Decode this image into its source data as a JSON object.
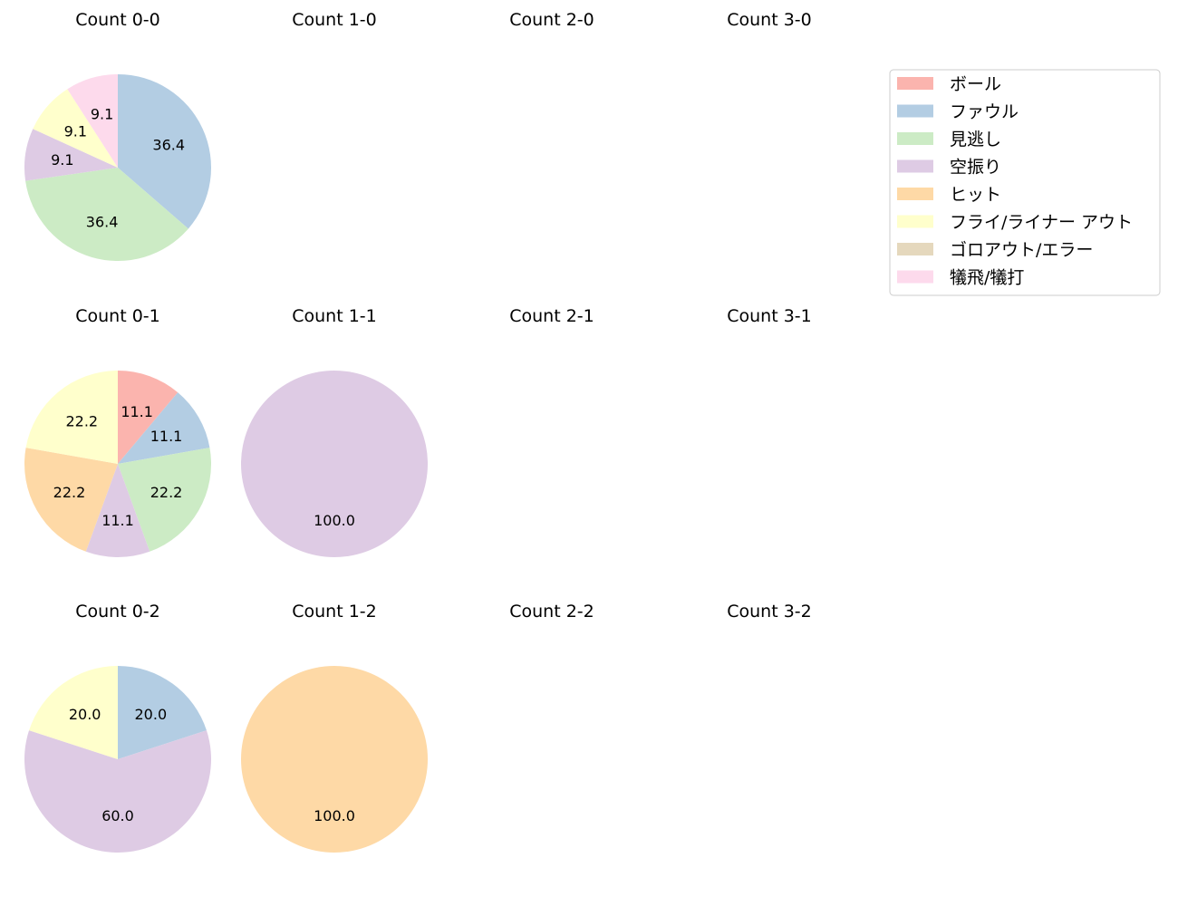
{
  "chart_data": {
    "type": "pie",
    "colors": {
      "ボール": "#fbb4ae",
      "ファウル": "#b3cde3",
      "見逃し": "#ccebc5",
      "空振り": "#decbe4",
      "ヒット": "#fed9a6",
      "フライ/ライナー アウト": "#ffffcc",
      "ゴロアウト/エラー": "#e5d8bd",
      "犠飛/犠打": "#fddaec"
    },
    "legend": {
      "placement": "top-right",
      "entries": [
        "ボール",
        "ファウル",
        "見逃し",
        "空振り",
        "ヒット",
        "フライ/ライナー アウト",
        "ゴロアウト/エラー",
        "犠飛/犠打"
      ]
    },
    "subplots": [
      {
        "title": "Count 0-0",
        "row": 0,
        "col": 0,
        "slices": [
          {
            "label": "ファウル",
            "value": 36.4
          },
          {
            "label": "見逃し",
            "value": 36.4
          },
          {
            "label": "空振り",
            "value": 9.1
          },
          {
            "label": "フライ/ライナー アウト",
            "value": 9.1
          },
          {
            "label": "犠飛/犠打",
            "value": 9.1
          }
        ]
      },
      {
        "title": "Count 1-0",
        "row": 0,
        "col": 1,
        "slices": []
      },
      {
        "title": "Count 2-0",
        "row": 0,
        "col": 2,
        "slices": []
      },
      {
        "title": "Count 3-0",
        "row": 0,
        "col": 3,
        "slices": []
      },
      {
        "title": "Count 0-1",
        "row": 1,
        "col": 0,
        "slices": [
          {
            "label": "ボール",
            "value": 11.1
          },
          {
            "label": "ファウル",
            "value": 11.1
          },
          {
            "label": "見逃し",
            "value": 22.2
          },
          {
            "label": "空振り",
            "value": 11.1
          },
          {
            "label": "ヒット",
            "value": 22.2
          },
          {
            "label": "フライ/ライナー アウト",
            "value": 22.2
          }
        ]
      },
      {
        "title": "Count 1-1",
        "row": 1,
        "col": 1,
        "slices": [
          {
            "label": "空振り",
            "value": 100.0
          }
        ]
      },
      {
        "title": "Count 2-1",
        "row": 1,
        "col": 2,
        "slices": []
      },
      {
        "title": "Count 3-1",
        "row": 1,
        "col": 3,
        "slices": []
      },
      {
        "title": "Count 0-2",
        "row": 2,
        "col": 0,
        "slices": [
          {
            "label": "ファウル",
            "value": 20.0
          },
          {
            "label": "空振り",
            "value": 60.0
          },
          {
            "label": "フライ/ライナー アウト",
            "value": 20.0
          }
        ]
      },
      {
        "title": "Count 1-2",
        "row": 2,
        "col": 1,
        "slices": [
          {
            "label": "ヒット",
            "value": 100.0
          }
        ]
      },
      {
        "title": "Count 2-2",
        "row": 2,
        "col": 2,
        "slices": []
      },
      {
        "title": "Count 3-2",
        "row": 2,
        "col": 3,
        "slices": []
      }
    ]
  }
}
